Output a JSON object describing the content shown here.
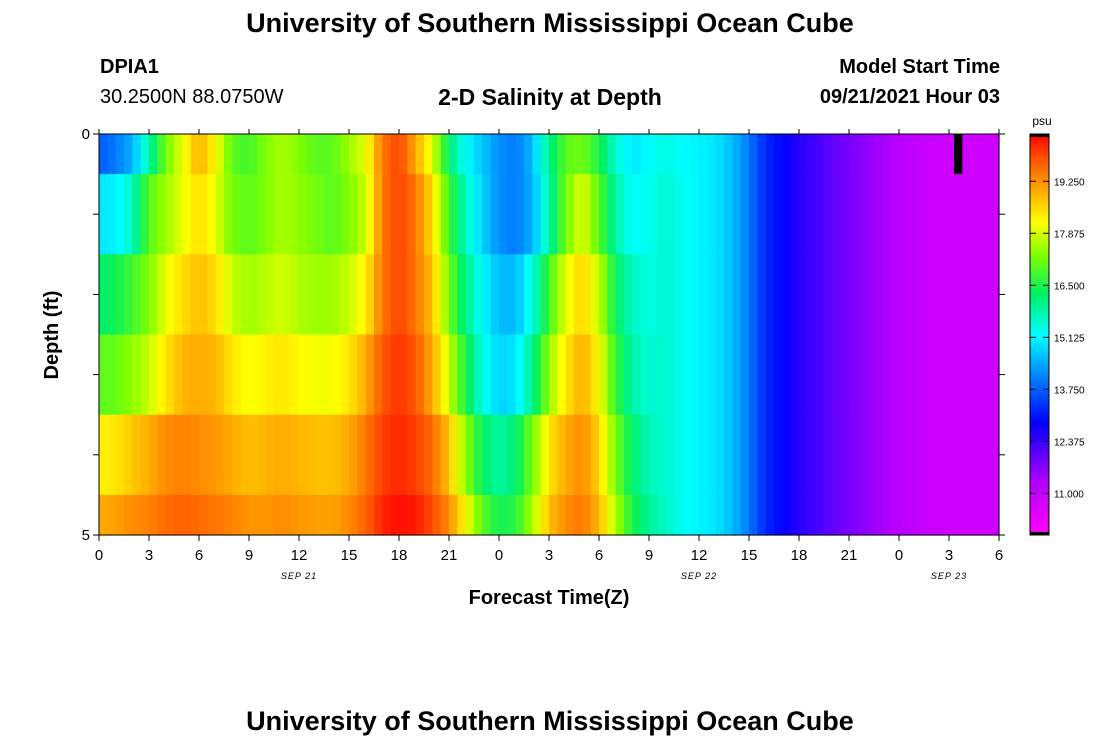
{
  "header": {
    "title": "University of Southern Mississippi Ocean Cube",
    "station_id": "DPIA1",
    "coords": "30.2500N  88.0750W",
    "subtitle": "2-D Salinity at Depth",
    "model_label": "Model Start Time",
    "model_time": "09/21/2021 Hour 03"
  },
  "footer": {
    "title": "University of Southern Mississippi Ocean Cube"
  },
  "chart_data": {
    "type": "heatmap",
    "title": "2-D Salinity at Depth",
    "xlabel": "Forecast Time(Z)",
    "ylabel": "Depth (ft)",
    "x_tick_labels": [
      "0",
      "3",
      "6",
      "9",
      "12",
      "15",
      "18",
      "21",
      "0",
      "3",
      "6",
      "9",
      "12",
      "15",
      "18",
      "21",
      "0",
      "3",
      "6"
    ],
    "x_range_hours": [
      0,
      54
    ],
    "date_labels": [
      {
        "text": "SEP 21",
        "hour": 12
      },
      {
        "text": "SEP 22",
        "hour": 36
      },
      {
        "text": "SEP 23",
        "hour": 51
      }
    ],
    "y_range": [
      0,
      5
    ],
    "y_tick_labels": [
      {
        "text": "0",
        "value": 0
      },
      {
        "text": "5",
        "value": 5
      }
    ],
    "depth_bands": [
      0,
      0.5,
      1.5,
      2.5,
      3.5,
      4.5,
      5
    ],
    "colorbar": {
      "unit": "psu",
      "vmin": 9.9,
      "vmax": 20.5,
      "ticks": [
        "11.000",
        "12.375",
        "13.750",
        "15.125",
        "16.500",
        "17.875",
        "19.250"
      ]
    },
    "salinity_keypoints": {
      "hours": [
        0,
        1,
        2,
        3,
        4,
        5,
        6,
        7,
        8,
        9,
        10,
        11,
        12,
        13,
        14,
        15,
        16,
        17,
        18,
        19,
        20,
        21,
        22,
        23,
        24,
        25,
        26,
        27,
        28,
        29,
        30,
        31,
        32,
        33,
        34,
        35,
        36,
        37,
        38,
        39,
        40,
        41,
        42,
        43,
        44,
        45,
        46,
        47,
        48,
        49,
        50,
        51,
        52,
        53,
        54
      ],
      "rows": [
        [
          13.7,
          14.0,
          14.5,
          15.8,
          17.2,
          18.0,
          19.0,
          18.2,
          17.0,
          16.8,
          17.3,
          17.6,
          17.3,
          17.0,
          17.0,
          17.5,
          18.0,
          19.5,
          20.0,
          19.0,
          18.0,
          16.2,
          15.2,
          14.7,
          14.2,
          14.0,
          14.6,
          16.0,
          17.0,
          17.2,
          16.5,
          15.5,
          15.0,
          15.2,
          15.4,
          15.2,
          15.1,
          15.0,
          14.6,
          14.0,
          13.2,
          12.9,
          12.5,
          12.3,
          12.0,
          11.8,
          11.6,
          11.4,
          11.2,
          11.0,
          10.9,
          10.8,
          10.8,
          10.8,
          10.8
        ],
        [
          15.0,
          15.1,
          15.6,
          17.0,
          17.5,
          18.0,
          18.5,
          18.0,
          17.2,
          17.0,
          17.3,
          17.6,
          17.4,
          17.2,
          17.0,
          17.3,
          17.8,
          19.5,
          20.0,
          19.5,
          18.5,
          16.8,
          15.6,
          14.8,
          14.2,
          14.0,
          14.5,
          15.8,
          17.2,
          18.0,
          17.0,
          15.8,
          15.2,
          15.3,
          15.5,
          15.3,
          15.1,
          15.0,
          14.6,
          14.0,
          13.2,
          12.9,
          12.5,
          12.3,
          12.0,
          11.8,
          11.6,
          11.4,
          11.2,
          11.0,
          10.9,
          10.8,
          10.8,
          10.8,
          10.8
        ],
        [
          16.2,
          16.4,
          16.8,
          17.3,
          18.0,
          18.5,
          18.8,
          18.5,
          17.8,
          17.5,
          17.7,
          17.9,
          17.6,
          17.5,
          17.5,
          17.8,
          18.3,
          19.5,
          20.0,
          19.5,
          18.8,
          17.2,
          16.0,
          15.2,
          14.6,
          14.6,
          15.4,
          16.8,
          18.0,
          18.6,
          17.8,
          16.3,
          15.6,
          15.4,
          15.5,
          15.3,
          15.1,
          15.0,
          14.6,
          14.0,
          13.2,
          12.9,
          12.5,
          12.3,
          12.0,
          11.8,
          11.6,
          11.4,
          11.2,
          11.0,
          10.9,
          10.8,
          10.8,
          10.8,
          10.8
        ],
        [
          17.0,
          17.1,
          17.4,
          17.8,
          18.4,
          18.9,
          19.0,
          18.9,
          18.4,
          18.1,
          18.3,
          18.4,
          18.2,
          18.1,
          18.1,
          18.4,
          19.0,
          19.8,
          20.1,
          19.8,
          19.0,
          17.8,
          16.5,
          15.4,
          14.8,
          15.0,
          16.0,
          17.4,
          18.4,
          19.0,
          18.2,
          16.7,
          15.8,
          15.5,
          15.5,
          15.3,
          15.1,
          15.0,
          14.6,
          14.0,
          13.2,
          12.9,
          12.5,
          12.3,
          12.0,
          11.8,
          11.6,
          11.4,
          11.2,
          11.0,
          10.9,
          10.8,
          10.8,
          10.8,
          10.8
        ],
        [
          18.3,
          18.4,
          18.7,
          19.0,
          19.3,
          19.4,
          19.3,
          19.2,
          19.0,
          18.8,
          18.9,
          19.0,
          18.9,
          18.8,
          18.8,
          19.0,
          19.5,
          20.0,
          20.2,
          20.0,
          19.6,
          18.8,
          17.4,
          16.3,
          15.8,
          16.2,
          17.2,
          18.4,
          19.0,
          19.3,
          18.6,
          17.2,
          16.2,
          15.7,
          15.5,
          15.3,
          15.1,
          15.0,
          14.6,
          14.0,
          13.2,
          12.9,
          12.5,
          12.3,
          12.0,
          11.8,
          11.6,
          11.4,
          11.2,
          11.0,
          10.9,
          10.8,
          10.8,
          10.8,
          10.8
        ],
        [
          19.0,
          19.1,
          19.3,
          19.4,
          19.6,
          19.7,
          19.6,
          19.5,
          19.4,
          19.2,
          19.2,
          19.3,
          19.2,
          19.1,
          19.1,
          19.3,
          19.7,
          20.2,
          20.4,
          20.3,
          19.9,
          19.3,
          18.2,
          17.0,
          16.4,
          16.6,
          17.6,
          18.8,
          19.3,
          19.5,
          18.9,
          17.6,
          16.5,
          15.9,
          15.6,
          15.3,
          15.1,
          15.0,
          14.6,
          14.0,
          13.2,
          12.9,
          12.5,
          12.3,
          12.0,
          11.8,
          11.6,
          11.4,
          11.2,
          11.0,
          10.9,
          10.8,
          10.8,
          10.8,
          10.8
        ]
      ]
    },
    "annotation": {
      "type": "black-bar",
      "hour_start": 51.3,
      "hour_end": 51.8,
      "depth_start": 0,
      "depth_end": 0.5
    }
  }
}
